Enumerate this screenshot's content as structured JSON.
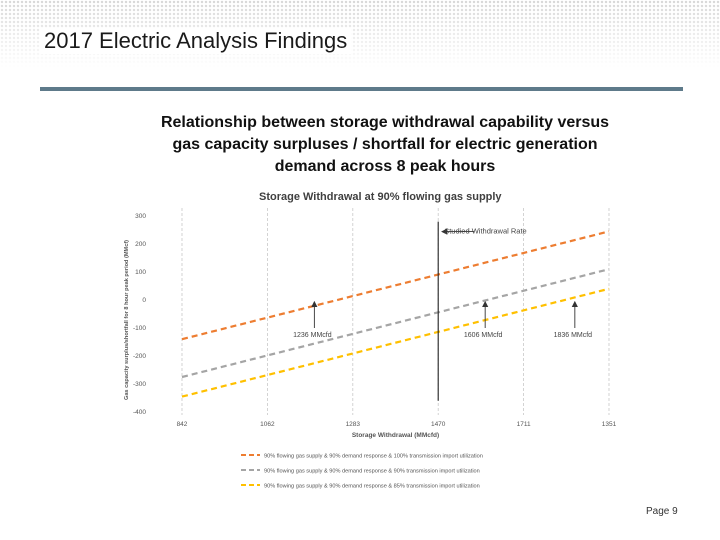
{
  "slide": {
    "title": "2017 Electric Analysis Findings",
    "caption_lines": [
      "Relationship between storage withdrawal capability versus",
      "gas capacity surpluses / shortfall for electric generation",
      "demand across 8 peak hours"
    ],
    "page": "Page 9"
  },
  "chart_data": {
    "type": "line",
    "title": "Storage Withdrawal at 90% flowing gas supply",
    "xlabel": "Storage Withdrawal (MMcfd)",
    "ylabel": "Gas capacity surplus/shortfall for 8 hour peak period (MMcf)",
    "x_ticks": [
      "842",
      "1062",
      "1283",
      "1470",
      "1711",
      "1351"
    ],
    "y_ticks": [
      "300",
      "200",
      "100",
      "0",
      "-100",
      "-200",
      "-300",
      "-400"
    ],
    "ylim": [
      -400,
      300
    ],
    "grid": "vertical dashed",
    "legend_position": "bottom",
    "series": [
      {
        "name": "90% flowing gas supply & 90% demand response & 100% transmission import utilization",
        "color": "#ED7D31",
        "x_index": [
          0,
          5
        ],
        "y": [
          -140,
          245
        ]
      },
      {
        "name": "90% flowing gas supply & 90% demand response & 90% transmission import utilization",
        "color": "#A5A5A5",
        "x_index": [
          0,
          5
        ],
        "y": [
          -275,
          110
        ]
      },
      {
        "name": "90% flowing gas supply & 90% demand response & 85% transmission import utilization",
        "color": "#FFC000",
        "x_index": [
          0,
          5
        ],
        "y": [
          -345,
          40
        ]
      }
    ],
    "annotations": [
      {
        "label": "Studied Withdrawal Rate",
        "x_index": 3,
        "y_range": [
          -360,
          280
        ],
        "type": "vertical-line"
      },
      {
        "label": "1236 MMcfd",
        "x_index": 1.55,
        "y": 0
      },
      {
        "label": "1606 MMcfd",
        "x_index": 3.55,
        "y": 0
      },
      {
        "label": "1836 MMcfd",
        "x_index": 4.6,
        "y": 0
      }
    ]
  }
}
